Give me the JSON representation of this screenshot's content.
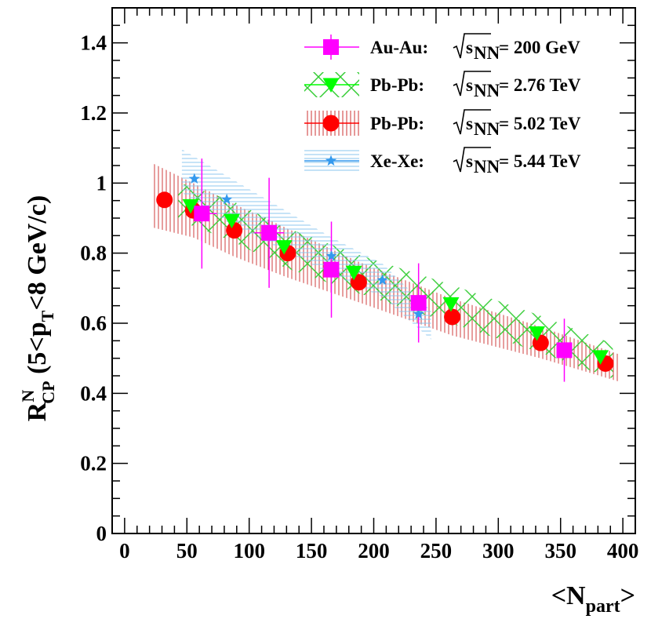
{
  "chart_data": {
    "type": "scatter",
    "title": "",
    "xlim": [
      -10,
      410
    ],
    "ylim": [
      0,
      1.5
    ],
    "x_ticks": [
      0,
      50,
      100,
      150,
      200,
      250,
      300,
      350,
      400
    ],
    "x_tick_labels": [
      "0",
      "50",
      "100",
      "150",
      "200",
      "250",
      "300",
      "350",
      "400"
    ],
    "y_ticks": [
      0,
      0.2,
      0.4,
      0.6,
      0.8,
      1.0,
      1.2,
      1.4
    ],
    "y_tick_labels": [
      "0",
      "0.2",
      "0.4",
      "0.6",
      "0.8",
      "1",
      "1.2",
      "1.4"
    ],
    "xlabel": {
      "main": "<N",
      "sub": "part",
      "end": ">"
    },
    "ylabel": {
      "R": "R",
      "sup": "N",
      "sub": "CP",
      "rest1": " (5<p",
      "sub2": "T",
      "rest2": "<8 GeV/c)"
    },
    "series": [
      {
        "key": "auau",
        "legend_system": "Au-Au:",
        "legend_energy": "= 200 GeV",
        "legend_sqrt_symbol": "√",
        "legend_sqrt_s": "s",
        "legend_sqrt_sub": "NN",
        "marker": "square",
        "color": "#ff00ff",
        "band": "none",
        "x": [
          62,
          116,
          166,
          236,
          353
        ],
        "y": [
          0.913,
          0.858,
          0.753,
          0.658,
          0.523
        ],
        "yerr": [
          0.157,
          0.157,
          0.137,
          0.113,
          0.09
        ],
        "xerr": [
          6,
          6,
          0,
          0,
          0
        ]
      },
      {
        "key": "pbpb276",
        "legend_system": "Pb-Pb:",
        "legend_energy": "= 2.76 TeV",
        "legend_sqrt_symbol": "√",
        "legend_sqrt_s": "s",
        "legend_sqrt_sub": "NN",
        "marker": "triangle-down",
        "color": "#00ff00",
        "band": "cross-hatch",
        "band_color": "#22cc22",
        "x": [
          53,
          86,
          128,
          184,
          262,
          331,
          382
        ],
        "y": [
          0.935,
          0.893,
          0.818,
          0.745,
          0.655,
          0.572,
          0.504
        ],
        "band_upper": [
          0.99,
          0.95,
          0.875,
          0.8,
          0.71,
          0.625,
          0.555
        ],
        "band_lower": [
          0.88,
          0.835,
          0.76,
          0.69,
          0.6,
          0.52,
          0.455
        ]
      },
      {
        "key": "pbpb502",
        "legend_system": "Pb-Pb:",
        "legend_energy": "= 5.02 TeV",
        "legend_sqrt_symbol": "√",
        "legend_sqrt_s": "s",
        "legend_sqrt_sub": "NN",
        "marker": "circle",
        "color": "#ff0000",
        "band": "vertical-hatch",
        "band_color": "#cc2222",
        "x": [
          32,
          55,
          88,
          131,
          188,
          263,
          334,
          386
        ],
        "y": [
          0.952,
          0.922,
          0.865,
          0.8,
          0.717,
          0.618,
          0.544,
          0.485
        ],
        "band_upper": [
          1.04,
          1.0,
          0.94,
          0.87,
          0.775,
          0.67,
          0.59,
          0.525
        ],
        "band_lower": [
          0.865,
          0.845,
          0.79,
          0.73,
          0.66,
          0.565,
          0.5,
          0.445
        ]
      },
      {
        "key": "xexe",
        "legend_system": "Xe-Xe:",
        "legend_energy": "= 5.44 TeV",
        "legend_sqrt_symbol": "√",
        "legend_sqrt_s": "s",
        "legend_sqrt_sub": "NN",
        "marker": "star",
        "color": "#3399ee",
        "band": "horizontal-hatch",
        "band_color": "#99ccee",
        "x": [
          56,
          82,
          166,
          207,
          236
        ],
        "y": [
          1.012,
          0.953,
          0.792,
          0.723,
          0.626
        ],
        "band_upper": [
          1.075,
          1.02,
          0.845,
          0.77,
          0.67
        ],
        "band_lower": [
          0.95,
          0.89,
          0.74,
          0.675,
          0.585
        ]
      }
    ],
    "legend_position": "top-right",
    "grid": false
  }
}
